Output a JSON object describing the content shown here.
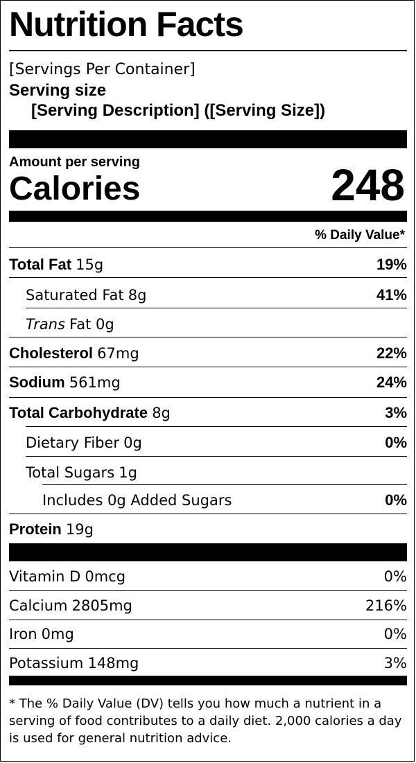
{
  "title": "Nutrition Facts",
  "servings_per_container": "[Servings Per Container]",
  "serving_size_label": "Serving size",
  "serving_size_value": "[Serving Description] ([Serving Size])",
  "amount_per_serving": "Amount per serving",
  "calories_label": "Calories",
  "calories_value": "248",
  "daily_value_header": "% Daily Value*",
  "nutrients": [
    {
      "name": "Total Fat",
      "amount": "15g",
      "dv": "19%"
    },
    {
      "name": "Saturated Fat",
      "amount": "8g",
      "dv": "41%"
    },
    {
      "name": "Trans",
      "suffix": "Fat 0g",
      "dv": ""
    },
    {
      "name": "Cholesterol",
      "amount": "67mg",
      "dv": "22%"
    },
    {
      "name": "Sodium",
      "amount": "561mg",
      "dv": "24%"
    },
    {
      "name": "Total Carbohydrate",
      "amount": "8g",
      "dv": "3%"
    },
    {
      "name": "Dietary Fiber",
      "amount": "0g",
      "dv": "0%"
    },
    {
      "name": "Total Sugars",
      "amount": "1g",
      "dv": ""
    },
    {
      "name": "Includes 0g Added Sugars",
      "dv": "0%"
    },
    {
      "name": "Protein",
      "amount": "19g",
      "dv": ""
    }
  ],
  "vitamins": [
    {
      "name": "Vitamin D",
      "amount": "0mcg",
      "dv": "0%"
    },
    {
      "name": "Calcium",
      "amount": "2805mg",
      "dv": "216%"
    },
    {
      "name": "Iron",
      "amount": "0mg",
      "dv": "0%"
    },
    {
      "name": "Potassium",
      "amount": "148mg",
      "dv": "3%"
    }
  ],
  "footnote": "* The % Daily Value (DV) tells you how much a nutrient in a serving of food contributes to a daily diet. 2,000 calories a day is used for general nutrition advice."
}
